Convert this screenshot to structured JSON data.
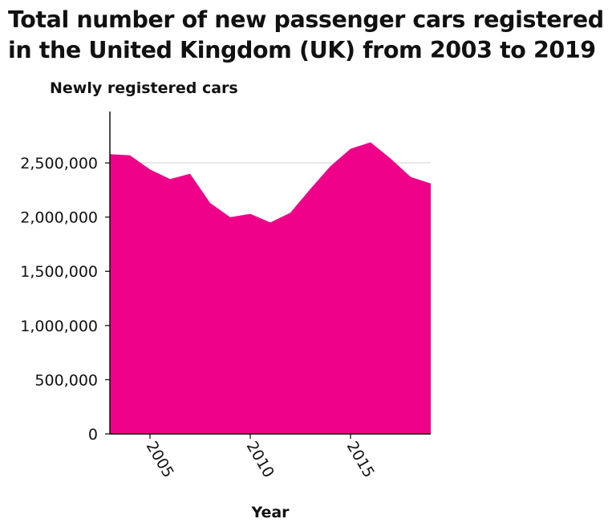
{
  "chart_data": {
    "type": "area",
    "title": "Total number of new passenger cars registered in the United Kingdom (UK) from 2003 to 2019",
    "xlabel": "Year",
    "ylabel": "Newly registered cars",
    "x": [
      2003,
      2004,
      2005,
      2006,
      2007,
      2008,
      2009,
      2010,
      2011,
      2012,
      2013,
      2014,
      2015,
      2016,
      2017,
      2018,
      2019
    ],
    "series": [
      {
        "values": [
          2580000,
          2570000,
          2440000,
          2350000,
          2400000,
          2130000,
          2000000,
          2030000,
          1950000,
          2040000,
          2260000,
          2470000,
          2630000,
          2690000,
          2540000,
          2370000,
          2310000
        ]
      }
    ],
    "xticks": [
      2005,
      2010,
      2015
    ],
    "xtick_labels": [
      "2005",
      "2010",
      "2015"
    ],
    "yticks": [
      0,
      500000,
      1000000,
      1500000,
      2000000,
      2500000
    ],
    "ytick_labels": [
      "0",
      "500,000",
      "1,000,000",
      "1,500,000",
      "2,000,000",
      "2,500,000"
    ],
    "xlim": [
      2003,
      2019
    ],
    "ylim": [
      0,
      2900000
    ],
    "gridlines": [
      2500000
    ],
    "colors": {
      "fill": "#ee0088",
      "grid": "#d6d6d6",
      "axis": "#000000"
    }
  }
}
